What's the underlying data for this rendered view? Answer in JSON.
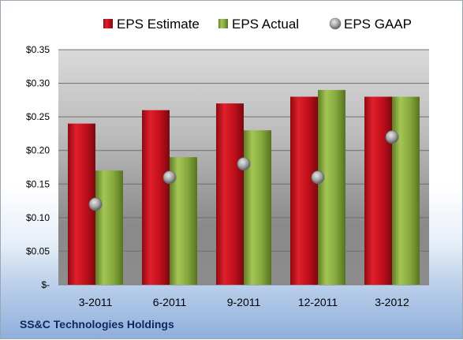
{
  "chart_data": {
    "type": "bar",
    "categories": [
      "3-2011",
      "6-2011",
      "9-2011",
      "12-2011",
      "3-2012"
    ],
    "series": [
      {
        "name": "EPS Estimate",
        "kind": "bar",
        "color": "#d0101f",
        "values": [
          0.24,
          0.26,
          0.27,
          0.28,
          0.28
        ]
      },
      {
        "name": "EPS Actual",
        "kind": "bar",
        "color": "#8db243",
        "values": [
          0.17,
          0.19,
          0.23,
          0.29,
          0.28
        ]
      },
      {
        "name": "EPS GAAP",
        "kind": "marker",
        "color": "#a9a9a9",
        "values": [
          0.12,
          0.16,
          0.18,
          0.16,
          0.22
        ]
      }
    ],
    "y_ticks": [
      {
        "value": 0,
        "label": "$-"
      },
      {
        "value": 0.05,
        "label": "$0.05"
      },
      {
        "value": 0.1,
        "label": "$0.10"
      },
      {
        "value": 0.15,
        "label": "$0.15"
      },
      {
        "value": 0.2,
        "label": "$0.20"
      },
      {
        "value": 0.25,
        "label": "$0.25"
      },
      {
        "value": 0.3,
        "label": "$0.30"
      },
      {
        "value": 0.35,
        "label": "$0.35"
      }
    ],
    "ylim": [
      0,
      0.35
    ],
    "grid": true,
    "legend_position": "top",
    "title": "",
    "xlabel": "",
    "ylabel": ""
  },
  "caption": "SS&C Technologies Holdings"
}
